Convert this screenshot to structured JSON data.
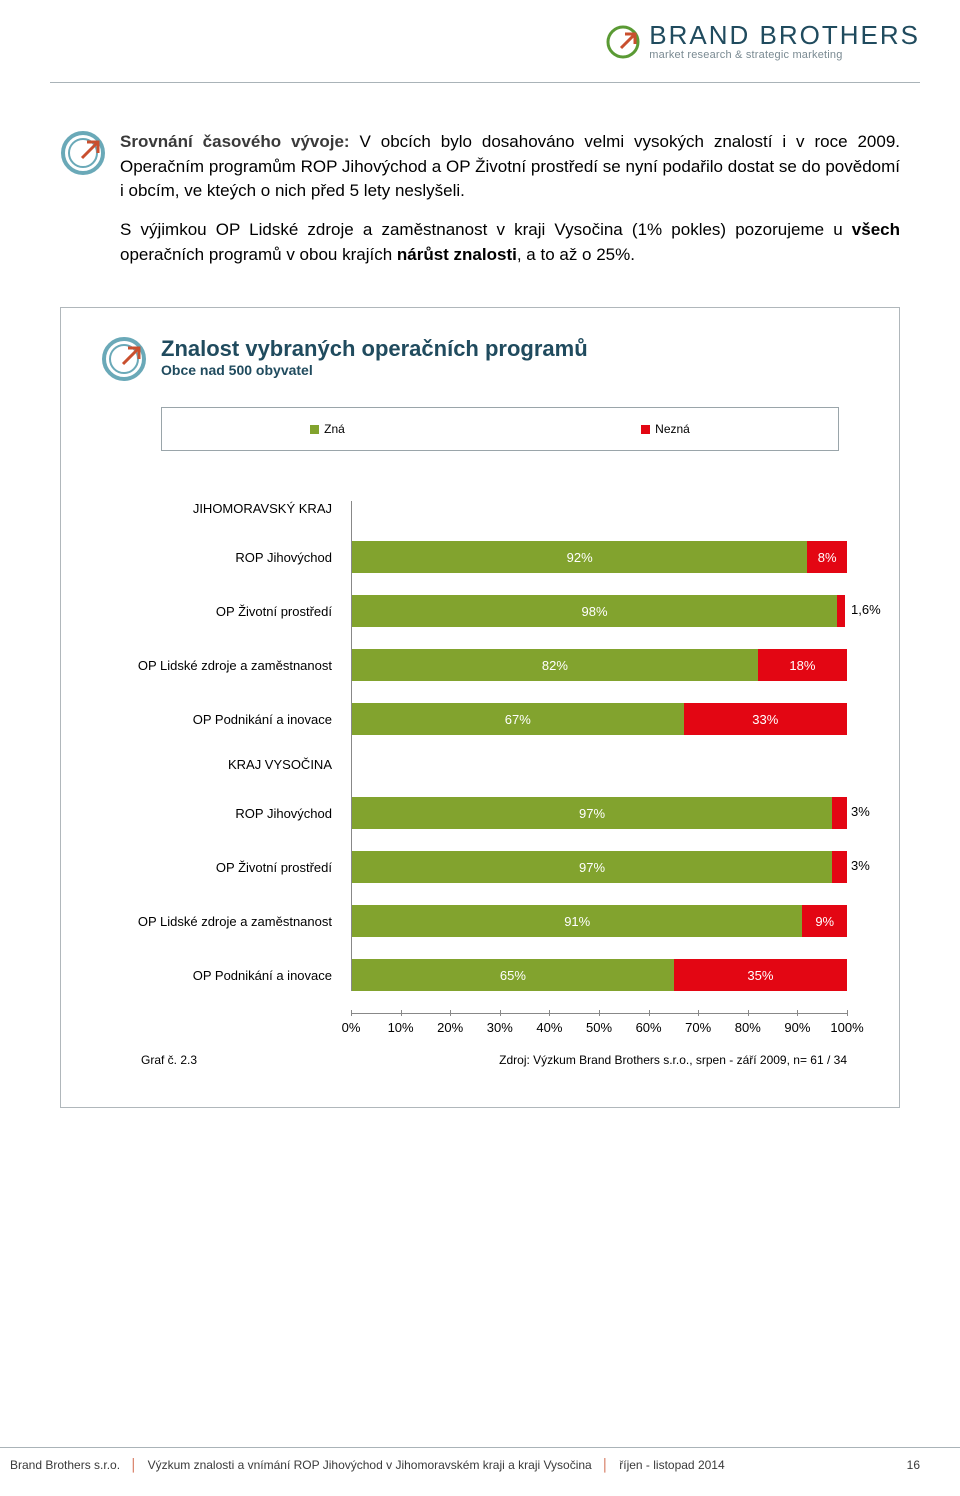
{
  "brand": {
    "name": "BRAND BROTHERS",
    "tagline": "market research & strategic marketing",
    "icon_colors": {
      "circle": "#5a9a34",
      "arrow": "#c94f2e"
    }
  },
  "body": {
    "p1_lead": "Srovnání časového vývoje:",
    "p1_rest": " V obcích bylo dosahováno velmi vysokých znalostí i v roce 2009. Operačním programům ROP Jihovýchod a OP Životní prostředí se nyní podařilo dostat se do povědomí i obcím, ve kteých o nich před 5 lety neslyšeli.",
    "p2_a": "S výjimkou OP Lidské zdroje a zaměstnanost v kraji Vysočina (1% pokles) pozorujeme u ",
    "p2_b": "všech",
    "p2_c": " operačních programů v obou krajích ",
    "p2_d": "nárůst znalosti",
    "p2_e": ", a to až o 25%."
  },
  "chart": {
    "title": "Znalost vybraných operačních programů",
    "subtitle": "Obce nad 500 obyvatel",
    "legend": {
      "zna": "Zná",
      "nezna": "Nezná"
    },
    "colors": {
      "zna": "#82a32e",
      "nezna": "#e30613",
      "border": "#9aa5aa",
      "axis": "#888888",
      "text_on_bar": "#ffffff"
    },
    "groups": [
      {
        "name": "JIHOMORAVSKÝ KRAJ",
        "rows": [
          {
            "label": "ROP Jihovýchod",
            "zna": 92,
            "nezna": 8,
            "zna_label": "92%",
            "nezna_label": "8%"
          },
          {
            "label": "OP Životní prostředí",
            "zna": 98,
            "nezna": 1.6,
            "zna_label": "98%",
            "nezna_label": "1,6%"
          },
          {
            "label": "OP Lidské zdroje a zaměstnanost",
            "zna": 82,
            "nezna": 18,
            "zna_label": "82%",
            "nezna_label": "18%"
          },
          {
            "label": "OP Podnikání a inovace",
            "zna": 67,
            "nezna": 33,
            "zna_label": "67%",
            "nezna_label": "33%"
          }
        ]
      },
      {
        "name": "KRAJ VYSOČINA",
        "rows": [
          {
            "label": "ROP Jihovýchod",
            "zna": 97,
            "nezna": 3,
            "zna_label": "97%",
            "nezna_label": "3%"
          },
          {
            "label": "OP Životní prostředí",
            "zna": 97,
            "nezna": 3,
            "zna_label": "97%",
            "nezna_label": "3%"
          },
          {
            "label": "OP Lidské zdroje a zaměstnanost",
            "zna": 91,
            "nezna": 9,
            "zna_label": "91%",
            "nezna_label": "9%"
          },
          {
            "label": "OP Podnikání a inovace",
            "zna": 65,
            "nezna": 35,
            "zna_label": "65%",
            "nezna_label": "35%"
          }
        ]
      }
    ],
    "axis": {
      "ticks": [
        0,
        10,
        20,
        30,
        40,
        50,
        60,
        70,
        80,
        90,
        100
      ],
      "labels": [
        "0%",
        "10%",
        "20%",
        "30%",
        "40%",
        "50%",
        "60%",
        "70%",
        "80%",
        "90%",
        "100%"
      ]
    },
    "graf_label": "Graf č. 2.3",
    "source": "Zdroj: Výzkum Brand Brothers s.r.o., srpen - září 2009, n= 61 / 34"
  },
  "footer": {
    "company": "Brand Brothers s.r.o.",
    "study": "Výzkum znalosti a vnímání ROP Jihovýchod v Jihomoravském kraji a kraji Vysočina",
    "date": "říjen - listopad 2014",
    "page": "16"
  }
}
